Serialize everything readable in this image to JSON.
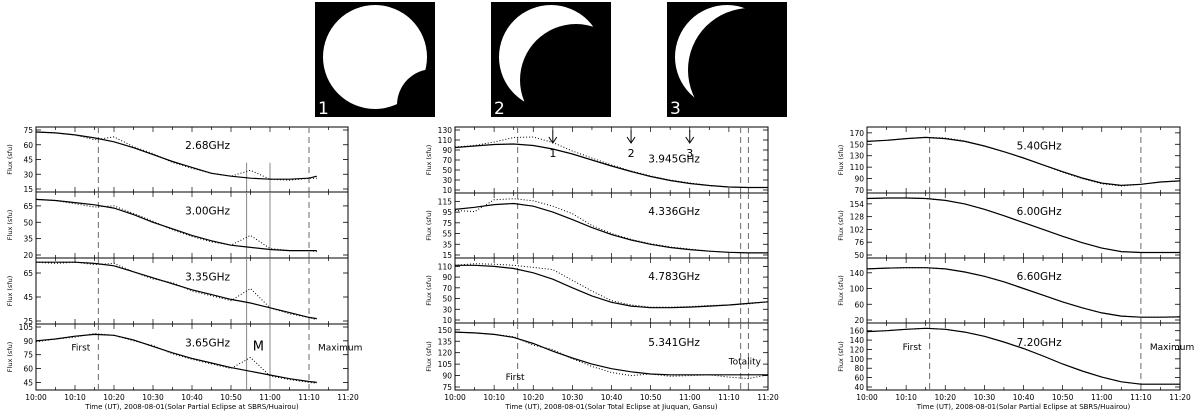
{
  "eclipse_images": [
    {
      "label": "1"
    },
    {
      "label": "2"
    },
    {
      "label": "3"
    }
  ],
  "panels_meta": [
    {
      "xlabel": "Time (UT), 2008-08-01(Solar Partial Eclipse at SBRS/Huairou)"
    },
    {
      "xlabel": "Time (UT), 2008-08-01(Solar Total Eclipse at Jiuquan, Gansu)"
    },
    {
      "xlabel": "Time (UT), 2008-08-01(Solar Partial Eclipse at SBRS/Huairou)"
    }
  ],
  "annotations": {
    "first": "First",
    "maximum": "Maximum",
    "totality": "Totality",
    "m_label": "M",
    "arrows": [
      "1",
      "2",
      "3"
    ]
  },
  "chart_data": [
    {
      "type": "line",
      "x_ticks": [
        "10:00",
        "10:10",
        "10:20",
        "10:30",
        "10:40",
        "10:50",
        "11:00",
        "11:10",
        "11:20"
      ],
      "xlim_minutes": [
        0,
        80
      ],
      "first_contact_min": 16,
      "maximum_min": 70,
      "m_lines_min": [
        54,
        60
      ],
      "subplots": [
        {
          "title": "2.68GHz",
          "ylabel": "Flux (sfu)",
          "yticks": [
            15,
            30,
            45,
            60,
            75
          ],
          "ylim": [
            15,
            75
          ],
          "x": [
            0,
            5,
            10,
            15,
            20,
            25,
            30,
            35,
            40,
            45,
            50,
            55,
            60,
            65,
            70,
            72
          ],
          "smooth": [
            73,
            72,
            70,
            67,
            63,
            57,
            50,
            43,
            37,
            31,
            28,
            26,
            25,
            25,
            26,
            28
          ],
          "obs": [
            73,
            72,
            70,
            65,
            68,
            58,
            51,
            42,
            36,
            31,
            28,
            34,
            25,
            24,
            26,
            26
          ]
        },
        {
          "title": "3.00GHz",
          "ylabel": "Flux (sfu)",
          "yticks": [
            20,
            35,
            50,
            65
          ],
          "ylim": [
            20,
            75
          ],
          "x": [
            0,
            5,
            10,
            15,
            20,
            25,
            30,
            35,
            40,
            45,
            50,
            55,
            60,
            65,
            70,
            72
          ],
          "smooth": [
            71,
            70,
            68,
            66,
            63,
            57,
            50,
            44,
            38,
            33,
            29,
            27,
            25,
            24,
            24,
            24
          ],
          "obs": [
            71,
            70,
            67,
            64,
            65,
            58,
            51,
            43,
            37,
            32,
            29,
            38,
            26,
            24,
            24,
            23
          ]
        },
        {
          "title": "3.35GHz",
          "ylabel": "Flux (sfu)",
          "yticks": [
            25,
            45,
            65
          ],
          "ylim": [
            25,
            75
          ],
          "x": [
            0,
            5,
            10,
            15,
            20,
            25,
            30,
            35,
            40,
            45,
            50,
            55,
            60,
            65,
            70,
            72
          ],
          "smooth": [
            74,
            74,
            74,
            73,
            71,
            66,
            61,
            56,
            51,
            47,
            43,
            40,
            36,
            32,
            28,
            27
          ],
          "obs": [
            74,
            73,
            74,
            72,
            73,
            66,
            60,
            57,
            50,
            46,
            42,
            52,
            36,
            31,
            28,
            26
          ]
        },
        {
          "title": "3.65GHz",
          "ylabel": "Flux (sfu)",
          "yticks": [
            45,
            60,
            75,
            90,
            105
          ],
          "ylim": [
            40,
            105
          ],
          "x": [
            0,
            5,
            10,
            15,
            20,
            25,
            30,
            35,
            40,
            45,
            50,
            55,
            60,
            65,
            70,
            72
          ],
          "smooth": [
            90,
            92,
            95,
            97,
            96,
            91,
            84,
            77,
            71,
            66,
            61,
            57,
            53,
            49,
            46,
            45
          ],
          "obs": [
            89,
            92,
            94,
            98,
            96,
            90,
            85,
            76,
            70,
            65,
            60,
            72,
            52,
            48,
            45,
            44
          ]
        }
      ]
    },
    {
      "type": "line",
      "x_ticks": [
        "10:00",
        "10:10",
        "10:20",
        "10:30",
        "10:40",
        "10:50",
        "11:00",
        "11:10",
        "11:20"
      ],
      "xlim_minutes": [
        0,
        80
      ],
      "first_contact_min": 16,
      "totality_min": [
        73,
        75
      ],
      "arrow_min": [
        25,
        45,
        60
      ],
      "subplots": [
        {
          "title": "3.945GHz",
          "ylabel": "Flux (sfu)",
          "yticks": [
            10,
            30,
            50,
            70,
            90,
            110,
            130
          ],
          "ylim": [
            10,
            130
          ],
          "x": [
            0,
            5,
            10,
            15,
            20,
            25,
            30,
            35,
            40,
            45,
            50,
            55,
            60,
            65,
            70,
            75,
            80
          ],
          "smooth": [
            95,
            98,
            101,
            102,
            99,
            92,
            82,
            70,
            58,
            47,
            37,
            29,
            23,
            19,
            16,
            15,
            15
          ],
          "obs": [
            96,
            99,
            106,
            115,
            116,
            105,
            88,
            74,
            60,
            48,
            38,
            30,
            24,
            19,
            16,
            15,
            15
          ]
        },
        {
          "title": "4.336GHz",
          "ylabel": "Flux (sfu)",
          "yticks": [
            15,
            35,
            55,
            75,
            95,
            115
          ],
          "ylim": [
            15,
            125
          ],
          "x": [
            0,
            5,
            10,
            15,
            20,
            25,
            30,
            35,
            40,
            45,
            50,
            55,
            60,
            65,
            70,
            75,
            80
          ],
          "smooth": [
            100,
            104,
            109,
            111,
            106,
            95,
            81,
            66,
            53,
            43,
            35,
            29,
            25,
            22,
            20,
            19,
            19
          ],
          "obs": [
            98,
            96,
            118,
            120,
            116,
            106,
            92,
            70,
            55,
            44,
            36,
            30,
            26,
            22,
            20,
            19,
            19
          ]
        },
        {
          "title": "4.783GHz",
          "ylabel": "Flux (sfu)",
          "yticks": [
            10,
            30,
            50,
            70,
            90,
            110
          ],
          "ylim": [
            10,
            120
          ],
          "x": [
            0,
            5,
            10,
            15,
            20,
            25,
            30,
            35,
            40,
            45,
            50,
            55,
            60,
            65,
            70,
            75,
            80
          ],
          "smooth": [
            112,
            112,
            110,
            106,
            98,
            86,
            70,
            55,
            43,
            36,
            33,
            33,
            34,
            36,
            38,
            41,
            44
          ],
          "obs": [
            112,
            115,
            114,
            112,
            108,
            104,
            84,
            64,
            46,
            38,
            34,
            34,
            35,
            37,
            38,
            40,
            44
          ]
        },
        {
          "title": "5.341GHz",
          "ylabel": "Flux (sfu)",
          "yticks": [
            75,
            90,
            105,
            120,
            135,
            150
          ],
          "ylim": [
            75,
            155
          ],
          "x": [
            0,
            5,
            10,
            15,
            20,
            25,
            30,
            35,
            40,
            45,
            50,
            55,
            60,
            65,
            70,
            75,
            80
          ],
          "smooth": [
            147,
            146,
            144,
            140,
            132,
            122,
            113,
            105,
            99,
            95,
            92,
            91,
            91,
            91,
            91,
            91,
            91
          ],
          "obs": [
            147,
            146,
            144,
            141,
            130,
            124,
            112,
            102,
            94,
            90,
            92,
            89,
            90,
            91,
            88,
            86,
            91
          ]
        }
      ]
    },
    {
      "type": "line",
      "x_ticks": [
        "10:00",
        "10:10",
        "10:20",
        "10:30",
        "10:40",
        "10:50",
        "11:00",
        "11:10",
        "11:20"
      ],
      "xlim_minutes": [
        0,
        80
      ],
      "first_contact_min": 16,
      "maximum_min": 70,
      "subplots": [
        {
          "title": "5.40GHz",
          "ylabel": "Flux (sfu)",
          "yticks": [
            70,
            90,
            110,
            130,
            150,
            170
          ],
          "ylim": [
            70,
            175
          ],
          "x": [
            0,
            5,
            10,
            15,
            20,
            25,
            30,
            35,
            40,
            45,
            50,
            55,
            60,
            65,
            70,
            75,
            80
          ],
          "smooth": [
            155,
            157,
            160,
            162,
            160,
            155,
            147,
            137,
            126,
            114,
            102,
            91,
            82,
            78,
            80,
            84,
            86
          ],
          "obs": [
            155,
            157,
            160,
            162,
            161,
            156,
            147,
            137,
            126,
            114,
            101,
            90,
            81,
            77,
            80,
            84,
            86
          ]
        },
        {
          "title": "6.00GHz",
          "ylabel": "Flux (sfu)",
          "yticks": [
            50,
            76,
            102,
            128,
            154
          ],
          "ylim": [
            50,
            170
          ],
          "x": [
            0,
            5,
            10,
            15,
            20,
            25,
            30,
            35,
            40,
            45,
            50,
            55,
            60,
            65,
            70,
            75,
            80
          ],
          "smooth": [
            165,
            166,
            166,
            165,
            161,
            154,
            143,
            130,
            116,
            102,
            88,
            75,
            64,
            57,
            55,
            55,
            55
          ],
          "obs": [
            165,
            166,
            166,
            165,
            161,
            154,
            143,
            130,
            116,
            102,
            88,
            75,
            64,
            57,
            55,
            55,
            55
          ]
        },
        {
          "title": "6.60GHz",
          "ylabel": "Flux (sfu)",
          "yticks": [
            20,
            60,
            100,
            140
          ],
          "ylim": [
            20,
            170
          ],
          "x": [
            0,
            5,
            10,
            15,
            20,
            25,
            30,
            35,
            40,
            45,
            50,
            55,
            60,
            65,
            70,
            75,
            80
          ],
          "smooth": [
            150,
            152,
            153,
            153,
            150,
            142,
            131,
            117,
            100,
            83,
            66,
            51,
            38,
            30,
            27,
            27,
            28
          ],
          "obs": [
            150,
            152,
            153,
            153,
            150,
            142,
            131,
            117,
            100,
            83,
            66,
            51,
            38,
            30,
            27,
            27,
            28
          ]
        },
        {
          "title": "7.20GHz",
          "ylabel": "Flux (sfu)",
          "yticks": [
            40,
            60,
            80,
            100,
            120,
            140,
            160
          ],
          "ylim": [
            40,
            170
          ],
          "x": [
            0,
            5,
            10,
            15,
            20,
            25,
            30,
            35,
            40,
            45,
            50,
            55,
            60,
            65,
            70,
            75,
            80
          ],
          "smooth": [
            158,
            160,
            163,
            165,
            163,
            157,
            148,
            136,
            122,
            106,
            89,
            74,
            61,
            51,
            46,
            46,
            46
          ],
          "obs": [
            158,
            160,
            163,
            165,
            163,
            157,
            148,
            136,
            122,
            106,
            89,
            74,
            61,
            51,
            46,
            46,
            46
          ]
        }
      ]
    }
  ]
}
